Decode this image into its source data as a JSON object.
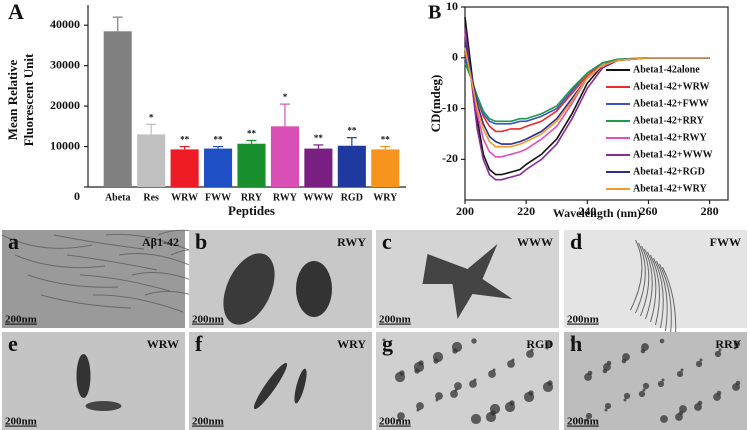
{
  "chart_data": [
    {
      "type": "bar",
      "panel_label": "A",
      "xlabel": "Peptides",
      "ylabel": [
        "Mean Relative",
        "Fluorescent Unit"
      ],
      "categories": [
        "Abeta",
        "Res",
        "WRW",
        "FWW",
        "RRY",
        "RWY",
        "WWW",
        "RGD",
        "WRY"
      ],
      "values": [
        38500,
        13000,
        9300,
        9500,
        10700,
        15000,
        9500,
        10200,
        9300
      ],
      "errors": [
        3500,
        2500,
        700,
        500,
        800,
        5500,
        900,
        2000,
        700
      ],
      "annotations": [
        null,
        "*",
        "**",
        "**",
        "**",
        "*",
        "**",
        "**",
        "**"
      ],
      "colors": [
        "#808080",
        "#c0c0c0",
        "#ee1c24",
        "#1f4fc4",
        "#1a8f2e",
        "#d94fb5",
        "#7a1f82",
        "#1f3a9e",
        "#f7941d"
      ],
      "ylim": [
        0,
        45000
      ],
      "yticks": [
        0,
        10000,
        20000,
        30000,
        40000
      ]
    },
    {
      "type": "line",
      "panel_label": "B",
      "xlabel": "Wavelength (nm)",
      "ylabel": "CD(mdeg)",
      "x": [
        200,
        202,
        204,
        206,
        208,
        210,
        212,
        215,
        218,
        220,
        225,
        230,
        235,
        240,
        245,
        250,
        260,
        270,
        280
      ],
      "xlim": [
        200,
        286
      ],
      "xticks": [
        200,
        220,
        240,
        260,
        280
      ],
      "ylim": [
        -28,
        10
      ],
      "yticks": [
        10,
        0,
        -10,
        -20
      ],
      "series": [
        {
          "name": "Abeta1-42alone",
          "color": "#111111",
          "values": [
            8,
            -2,
            -12,
            -19,
            -22,
            -23,
            -23,
            -22.5,
            -22,
            -21,
            -19,
            -16,
            -11,
            -5,
            -1.5,
            -0.5,
            0,
            0,
            0
          ]
        },
        {
          "name": "Abeta1-42+WRW",
          "color": "#ee2a2a",
          "values": [
            1,
            -4,
            -8,
            -11.5,
            -13.5,
            -14.5,
            -14.5,
            -14,
            -14,
            -13.5,
            -12.5,
            -10.5,
            -7,
            -3.5,
            -1,
            -0.5,
            0,
            0,
            0
          ]
        },
        {
          "name": "Abeta1-42+FWW",
          "color": "#3a55c8",
          "values": [
            0,
            -4,
            -8,
            -11,
            -12.5,
            -13,
            -13,
            -13,
            -12.5,
            -12.5,
            -11.5,
            -10,
            -6.5,
            -3,
            -1,
            -0.3,
            0,
            0,
            0
          ]
        },
        {
          "name": "Abeta1-42+RRY",
          "color": "#1f9a4a",
          "values": [
            -1,
            -4,
            -7.5,
            -10.5,
            -12,
            -12.5,
            -12.5,
            -12.5,
            -12,
            -12,
            -11,
            -9.5,
            -6,
            -3,
            -1,
            -0.3,
            0,
            0,
            0
          ]
        },
        {
          "name": "Abeta1-42+RWY",
          "color": "#e04fbf",
          "values": [
            5,
            -4,
            -11,
            -16,
            -18.5,
            -19.5,
            -19.5,
            -19,
            -18.5,
            -18,
            -16,
            -13.5,
            -9,
            -4,
            -1.5,
            -0.5,
            0,
            0,
            0
          ]
        },
        {
          "name": "Abeta1-42+WWW",
          "color": "#8a2a9a",
          "values": [
            6,
            -4,
            -14,
            -20,
            -23,
            -24,
            -24,
            -23.5,
            -23,
            -22,
            -20,
            -17,
            -12,
            -6,
            -2,
            -0.5,
            0,
            0,
            0
          ]
        },
        {
          "name": "Abeta1-42+RGD",
          "color": "#27308f",
          "values": [
            3,
            -3,
            -9,
            -13,
            -15.5,
            -16.5,
            -17,
            -17,
            -16.5,
            -16,
            -14.5,
            -12,
            -8,
            -4,
            -1.5,
            -0.5,
            0,
            0,
            0
          ]
        },
        {
          "name": "Abeta1-42+WRY",
          "color": "#f39a2a",
          "values": [
            2,
            -4,
            -10,
            -14,
            -16.5,
            -17.5,
            -17.5,
            -17.5,
            -17,
            -16.5,
            -15,
            -12.5,
            -8.5,
            -4,
            -1.5,
            -0.5,
            0,
            0,
            0
          ]
        }
      ]
    }
  ],
  "micrographs": [
    {
      "letter": "a",
      "label": "Aβ1-42",
      "scale": "200nm"
    },
    {
      "letter": "b",
      "label": "RWY",
      "scale": "200nm"
    },
    {
      "letter": "c",
      "label": "WWW",
      "scale": "200nm"
    },
    {
      "letter": "d",
      "label": "FWW",
      "scale": "200nm"
    },
    {
      "letter": "e",
      "label": "WRW",
      "scale": "200nm"
    },
    {
      "letter": "f",
      "label": "WRY",
      "scale": "200nm"
    },
    {
      "letter": "g",
      "label": "RGD",
      "scale": "200nm"
    },
    {
      "letter": "h",
      "label": "RRY",
      "scale": "200nm"
    }
  ]
}
